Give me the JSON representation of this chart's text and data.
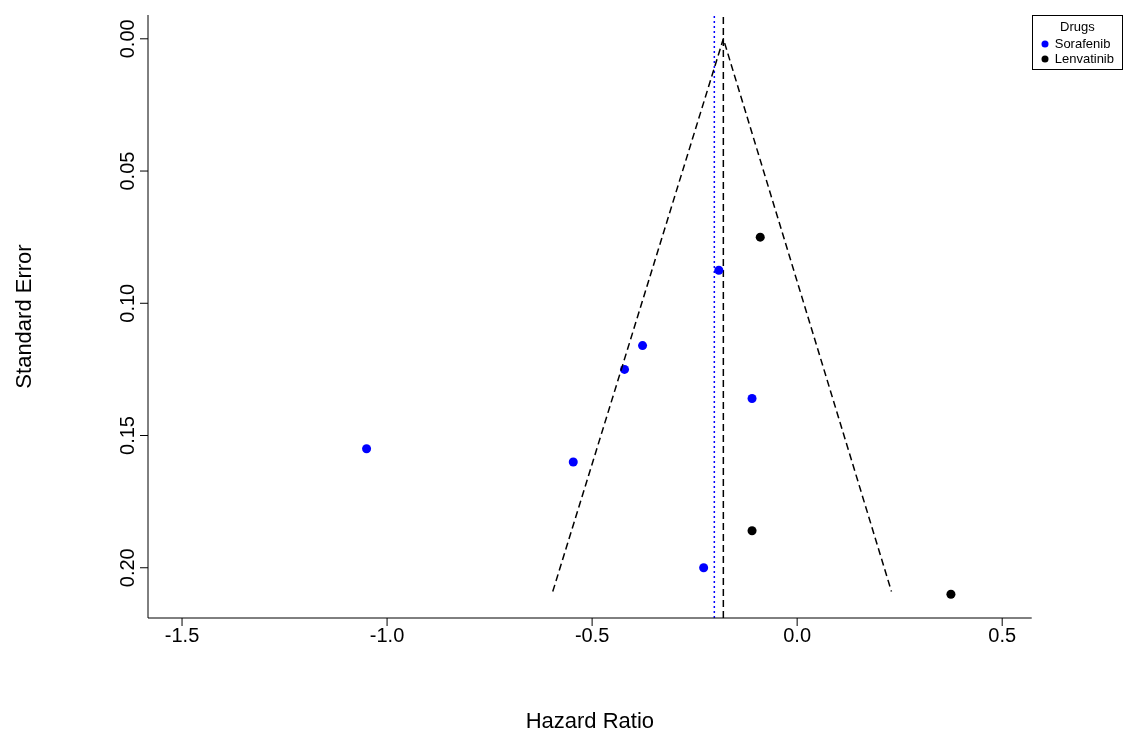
{
  "chart_data": {
    "type": "scatter",
    "xlabel": "Hazard Ratio",
    "ylabel": "Standard Error",
    "legend_title": "Drugs",
    "legend": "top right",
    "grid": false,
    "marker": "circle",
    "xlim": [
      -1.583,
      0.572
    ],
    "xticks": [
      {
        "value": -1.5,
        "label": "-1.5"
      },
      {
        "value": -1,
        "label": "-1.0"
      },
      {
        "value": -0.5,
        "label": "-0.5"
      },
      {
        "value": 0,
        "label": "0.0"
      },
      {
        "value": 0.5,
        "label": "0.5"
      }
    ],
    "ylim": [
      0.219,
      -0.009
    ],
    "yticks": [
      {
        "value": 0,
        "label": "0.00"
      },
      {
        "value": 0.05,
        "label": "0.05"
      },
      {
        "value": 0.1,
        "label": "0.10"
      },
      {
        "value": 0.15,
        "label": "0.15"
      },
      {
        "value": 0.2,
        "label": "0.20"
      }
    ],
    "series": [
      {
        "name": "Sorafenib",
        "color": "#0000ff",
        "x": [
          -0.191,
          -0.377,
          -0.421,
          -0.11,
          -1.05,
          -0.546,
          -0.228
        ],
        "values": [
          0.0875,
          0.116,
          0.125,
          0.136,
          0.155,
          0.16,
          0.2
        ]
      },
      {
        "name": "Lenvatinib",
        "color": "#000000",
        "x": [
          -0.09,
          -0.11,
          0.375
        ],
        "values": [
          0.075,
          0.186,
          0.21
        ]
      },
      {
        "type": "line",
        "color": "#000000",
        "line_style": "dashed",
        "marker": "none",
        "x": [
          -0.596,
          -0.18,
          0.23
        ],
        "values": [
          0.209,
          0,
          0.209
        ]
      }
    ],
    "ref_lines": [
      {
        "axis": "x",
        "value": -0.202,
        "color": "#0000ff",
        "line_style": "dotted"
      },
      {
        "axis": "x",
        "value": -0.18,
        "color": "#000000",
        "line_style": "dashed"
      }
    ]
  }
}
